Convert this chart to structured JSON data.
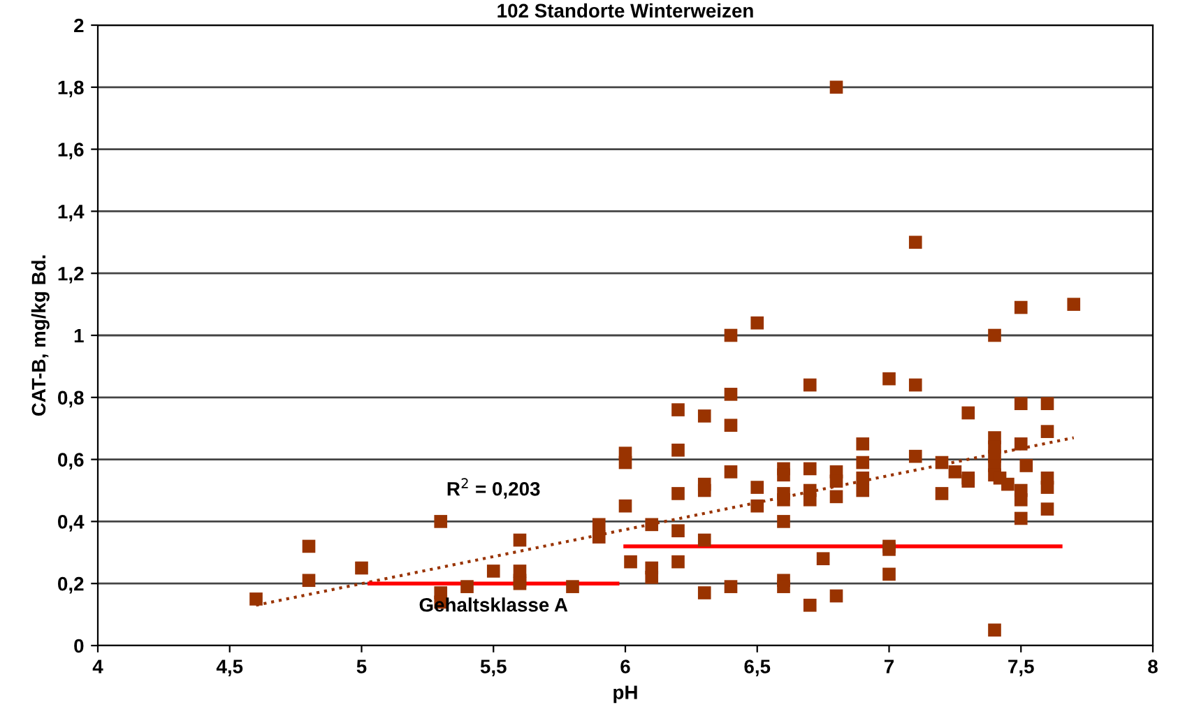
{
  "chart_data": {
    "type": "scatter",
    "title": "102 Standorte Winterweizen",
    "xlabel": "pH",
    "ylabel": "CAT-B, mg/kg Bd.",
    "xlim": [
      4,
      8
    ],
    "ylim": [
      0,
      2
    ],
    "xticks": [
      4,
      {
        "value": 4.5,
        "label": "4,5"
      },
      5,
      {
        "value": 5.5,
        "label": "5,5"
      },
      6,
      {
        "value": 6.5,
        "label": "6,5"
      },
      7,
      {
        "value": 7.5,
        "label": "7,5"
      },
      8
    ],
    "yticks": [
      0,
      {
        "value": 0.2,
        "label": "0,2"
      },
      {
        "value": 0.4,
        "label": "0,4"
      },
      {
        "value": 0.6,
        "label": "0,6"
      },
      {
        "value": 0.8,
        "label": "0,8"
      },
      1,
      {
        "value": 1.2,
        "label": "1,2"
      },
      {
        "value": 1.4,
        "label": "1,4"
      },
      {
        "value": 1.6,
        "label": "1,6"
      },
      {
        "value": 1.8,
        "label": "1,8"
      },
      2
    ],
    "grid": "y",
    "legend": false,
    "marker": "square",
    "series": [
      {
        "color": "#993300",
        "x": [
          4.6,
          4.8,
          4.8,
          5.0,
          5.3,
          5.3,
          5.3,
          5.4,
          5.5,
          5.6,
          5.6,
          5.6,
          5.6,
          5.8,
          5.9,
          5.9,
          6.0,
          6.0,
          6.0,
          6.02,
          6.1,
          6.1,
          6.1,
          6.2,
          6.2,
          6.2,
          6.2,
          6.2,
          6.3,
          6.3,
          6.3,
          6.3,
          6.3,
          6.4,
          6.4,
          6.4,
          6.4,
          6.4,
          6.5,
          6.5,
          6.5,
          6.6,
          6.6,
          6.6,
          6.6,
          6.6,
          6.6,
          6.6,
          6.7,
          6.7,
          6.7,
          6.7,
          6.7,
          6.75,
          6.8,
          6.8,
          6.8,
          6.8,
          6.8,
          6.9,
          6.9,
          6.9,
          6.9,
          7.0,
          7.0,
          7.0,
          7.0,
          7.1,
          7.1,
          7.1,
          7.2,
          7.2,
          7.25,
          7.3,
          7.3,
          7.3,
          7.4,
          7.4,
          7.4,
          7.4,
          7.4,
          7.4,
          7.42,
          7.45,
          7.4,
          7.5,
          7.5,
          7.5,
          7.5,
          7.5,
          7.5,
          7.52,
          7.6,
          7.6,
          7.6,
          7.6,
          7.6,
          7.7
        ],
        "values": [
          0.15,
          0.32,
          0.21,
          0.25,
          0.4,
          0.17,
          0.14,
          0.19,
          0.24,
          0.34,
          0.24,
          0.21,
          0.2,
          0.19,
          0.39,
          0.35,
          0.62,
          0.59,
          0.45,
          0.27,
          0.39,
          0.25,
          0.22,
          0.76,
          0.63,
          0.49,
          0.37,
          0.27,
          0.74,
          0.52,
          0.5,
          0.34,
          0.17,
          1.0,
          0.81,
          0.71,
          0.56,
          0.19,
          1.04,
          0.51,
          0.45,
          0.57,
          0.55,
          0.49,
          0.47,
          0.4,
          0.21,
          0.19,
          0.84,
          0.57,
          0.5,
          0.47,
          0.13,
          0.28,
          1.8,
          0.56,
          0.53,
          0.48,
          0.16,
          0.65,
          0.59,
          0.54,
          0.5,
          0.86,
          0.32,
          0.31,
          0.23,
          1.3,
          0.84,
          0.61,
          0.59,
          0.49,
          0.56,
          0.75,
          0.53,
          0.54,
          1.0,
          0.67,
          0.64,
          0.61,
          0.58,
          0.55,
          0.54,
          0.52,
          0.05,
          1.09,
          0.78,
          0.65,
          0.5,
          0.47,
          0.41,
          0.58,
          0.78,
          0.69,
          0.54,
          0.51,
          0.44,
          1.1
        ]
      },
      {
        "type": "line",
        "color": "#993300",
        "line_style": "dotted",
        "marker": "none",
        "x": [
          4.6,
          7.7
        ],
        "values": [
          0.13,
          0.67
        ]
      },
      {
        "type": "line",
        "color": "#ff0000",
        "line_style": "solid",
        "marker": "none",
        "x": [
          5.03,
          5.97
        ],
        "values": [
          0.2,
          0.2
        ]
      },
      {
        "type": "line",
        "color": "#ff0000",
        "line_style": "solid",
        "marker": "none",
        "x": [
          6.0,
          7.65
        ],
        "values": [
          0.32,
          0.32
        ]
      }
    ],
    "annotations": [
      "R$^{2}$ = 0,203",
      {
        "text": "Gehaltsklasse A",
        "x": 5.5,
        "y": 0.2
      }
    ]
  }
}
